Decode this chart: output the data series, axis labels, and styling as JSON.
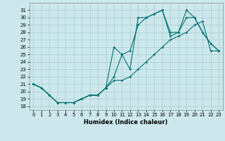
{
  "xlabel": "Humidex (Indice chaleur)",
  "line_color": "#007070",
  "bg_color": "#cce8ec",
  "grid_color": "#aacccc",
  "line1_y": [
    21,
    20.5,
    19.5,
    18.5,
    18.5,
    18.5,
    19,
    19.5,
    19.5,
    20.5,
    21.5,
    21.5,
    22,
    23,
    24,
    25,
    26,
    27,
    27.5,
    28,
    29,
    29.5,
    25.5,
    25.5
  ],
  "line2_y": [
    21,
    20.5,
    19.5,
    18.5,
    18.5,
    18.5,
    19,
    19.5,
    19.5,
    20.5,
    22,
    25,
    25.5,
    29,
    30,
    30.5,
    31,
    27.5,
    28,
    31,
    30,
    28,
    26.5,
    25.5
  ],
  "line3_y": [
    21,
    20.5,
    19.5,
    18.5,
    18.5,
    18.5,
    19,
    19.5,
    19.5,
    20.5,
    26,
    25,
    23,
    30,
    30,
    30.5,
    31,
    28,
    28,
    30,
    30,
    28,
    26.5,
    25.5
  ],
  "x": [
    0,
    1,
    2,
    3,
    4,
    5,
    6,
    7,
    8,
    9,
    10,
    11,
    12,
    13,
    14,
    15,
    16,
    17,
    18,
    19,
    20,
    21,
    22,
    23
  ],
  "ylim": [
    17.5,
    32
  ],
  "xlim": [
    -0.5,
    23.5
  ],
  "yticks": [
    18,
    19,
    20,
    21,
    22,
    23,
    24,
    25,
    26,
    27,
    28,
    29,
    30,
    31
  ],
  "xticks": [
    0,
    1,
    2,
    3,
    4,
    5,
    6,
    7,
    8,
    9,
    10,
    11,
    12,
    13,
    14,
    15,
    16,
    17,
    18,
    19,
    20,
    21,
    22,
    23
  ]
}
